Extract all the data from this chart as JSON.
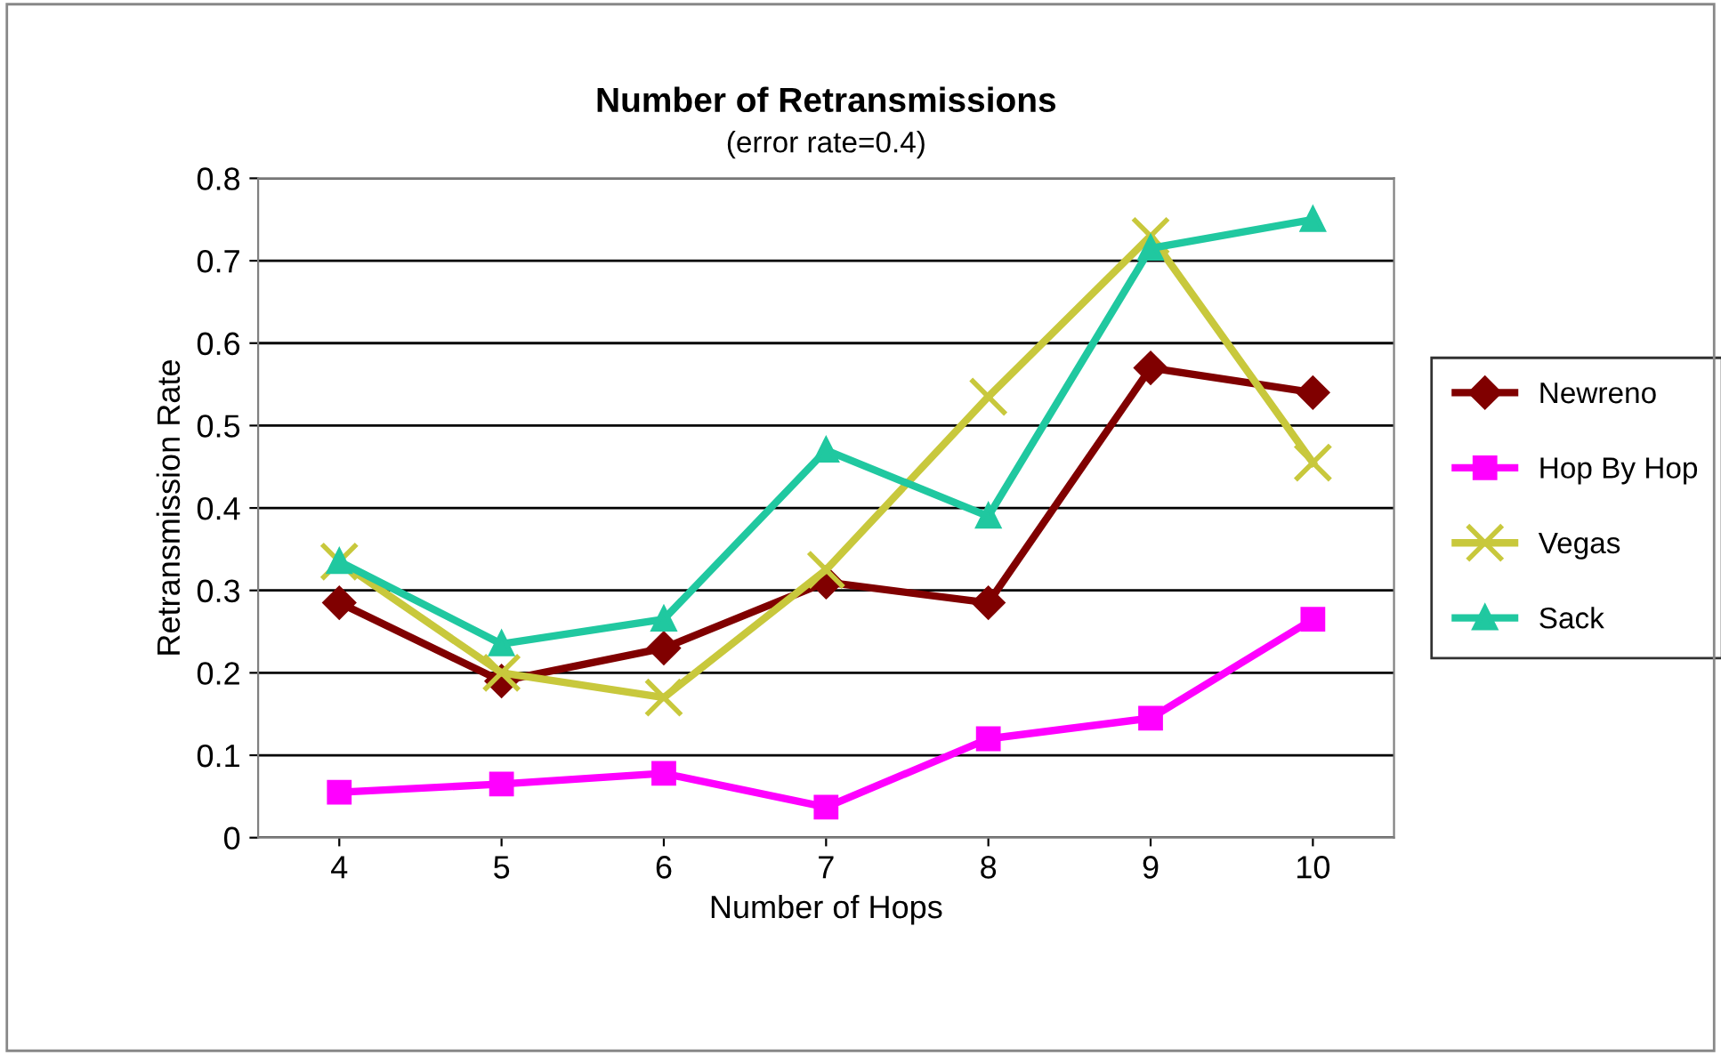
{
  "chart_data": {
    "type": "line",
    "title": "Number of Retransmissions",
    "subtitle": "(error rate=0.4)",
    "xlabel": "Number of Hops",
    "ylabel": "Retransmission Rate",
    "categories": [
      "4",
      "5",
      "6",
      "7",
      "8",
      "9",
      "10"
    ],
    "series": [
      {
        "name": "Newreno",
        "color": "#800000",
        "marker": "diamond",
        "values": [
          0.285,
          0.19,
          0.23,
          0.31,
          0.285,
          0.57,
          0.54
        ]
      },
      {
        "name": "Hop By Hop",
        "color": "#ff00ff",
        "marker": "square",
        "values": [
          0.055,
          0.065,
          0.078,
          0.037,
          0.12,
          0.145,
          0.265
        ]
      },
      {
        "name": "Vegas",
        "color": "#c8c83c",
        "marker": "cross",
        "values": [
          0.335,
          0.2,
          0.17,
          0.325,
          0.535,
          0.73,
          0.455
        ]
      },
      {
        "name": "Sack",
        "color": "#20c8a0",
        "marker": "triangle",
        "values": [
          0.335,
          0.235,
          0.265,
          0.47,
          0.39,
          0.715,
          0.75
        ]
      }
    ],
    "ylim": [
      0,
      0.8
    ],
    "yticks": [
      {
        "value": 0,
        "label": "0"
      },
      0.1,
      0.2,
      0.3,
      0.4,
      0.5,
      0.6,
      0.7,
      0.8
    ],
    "grid": "y",
    "legend": "right",
    "line_style": "solid"
  }
}
